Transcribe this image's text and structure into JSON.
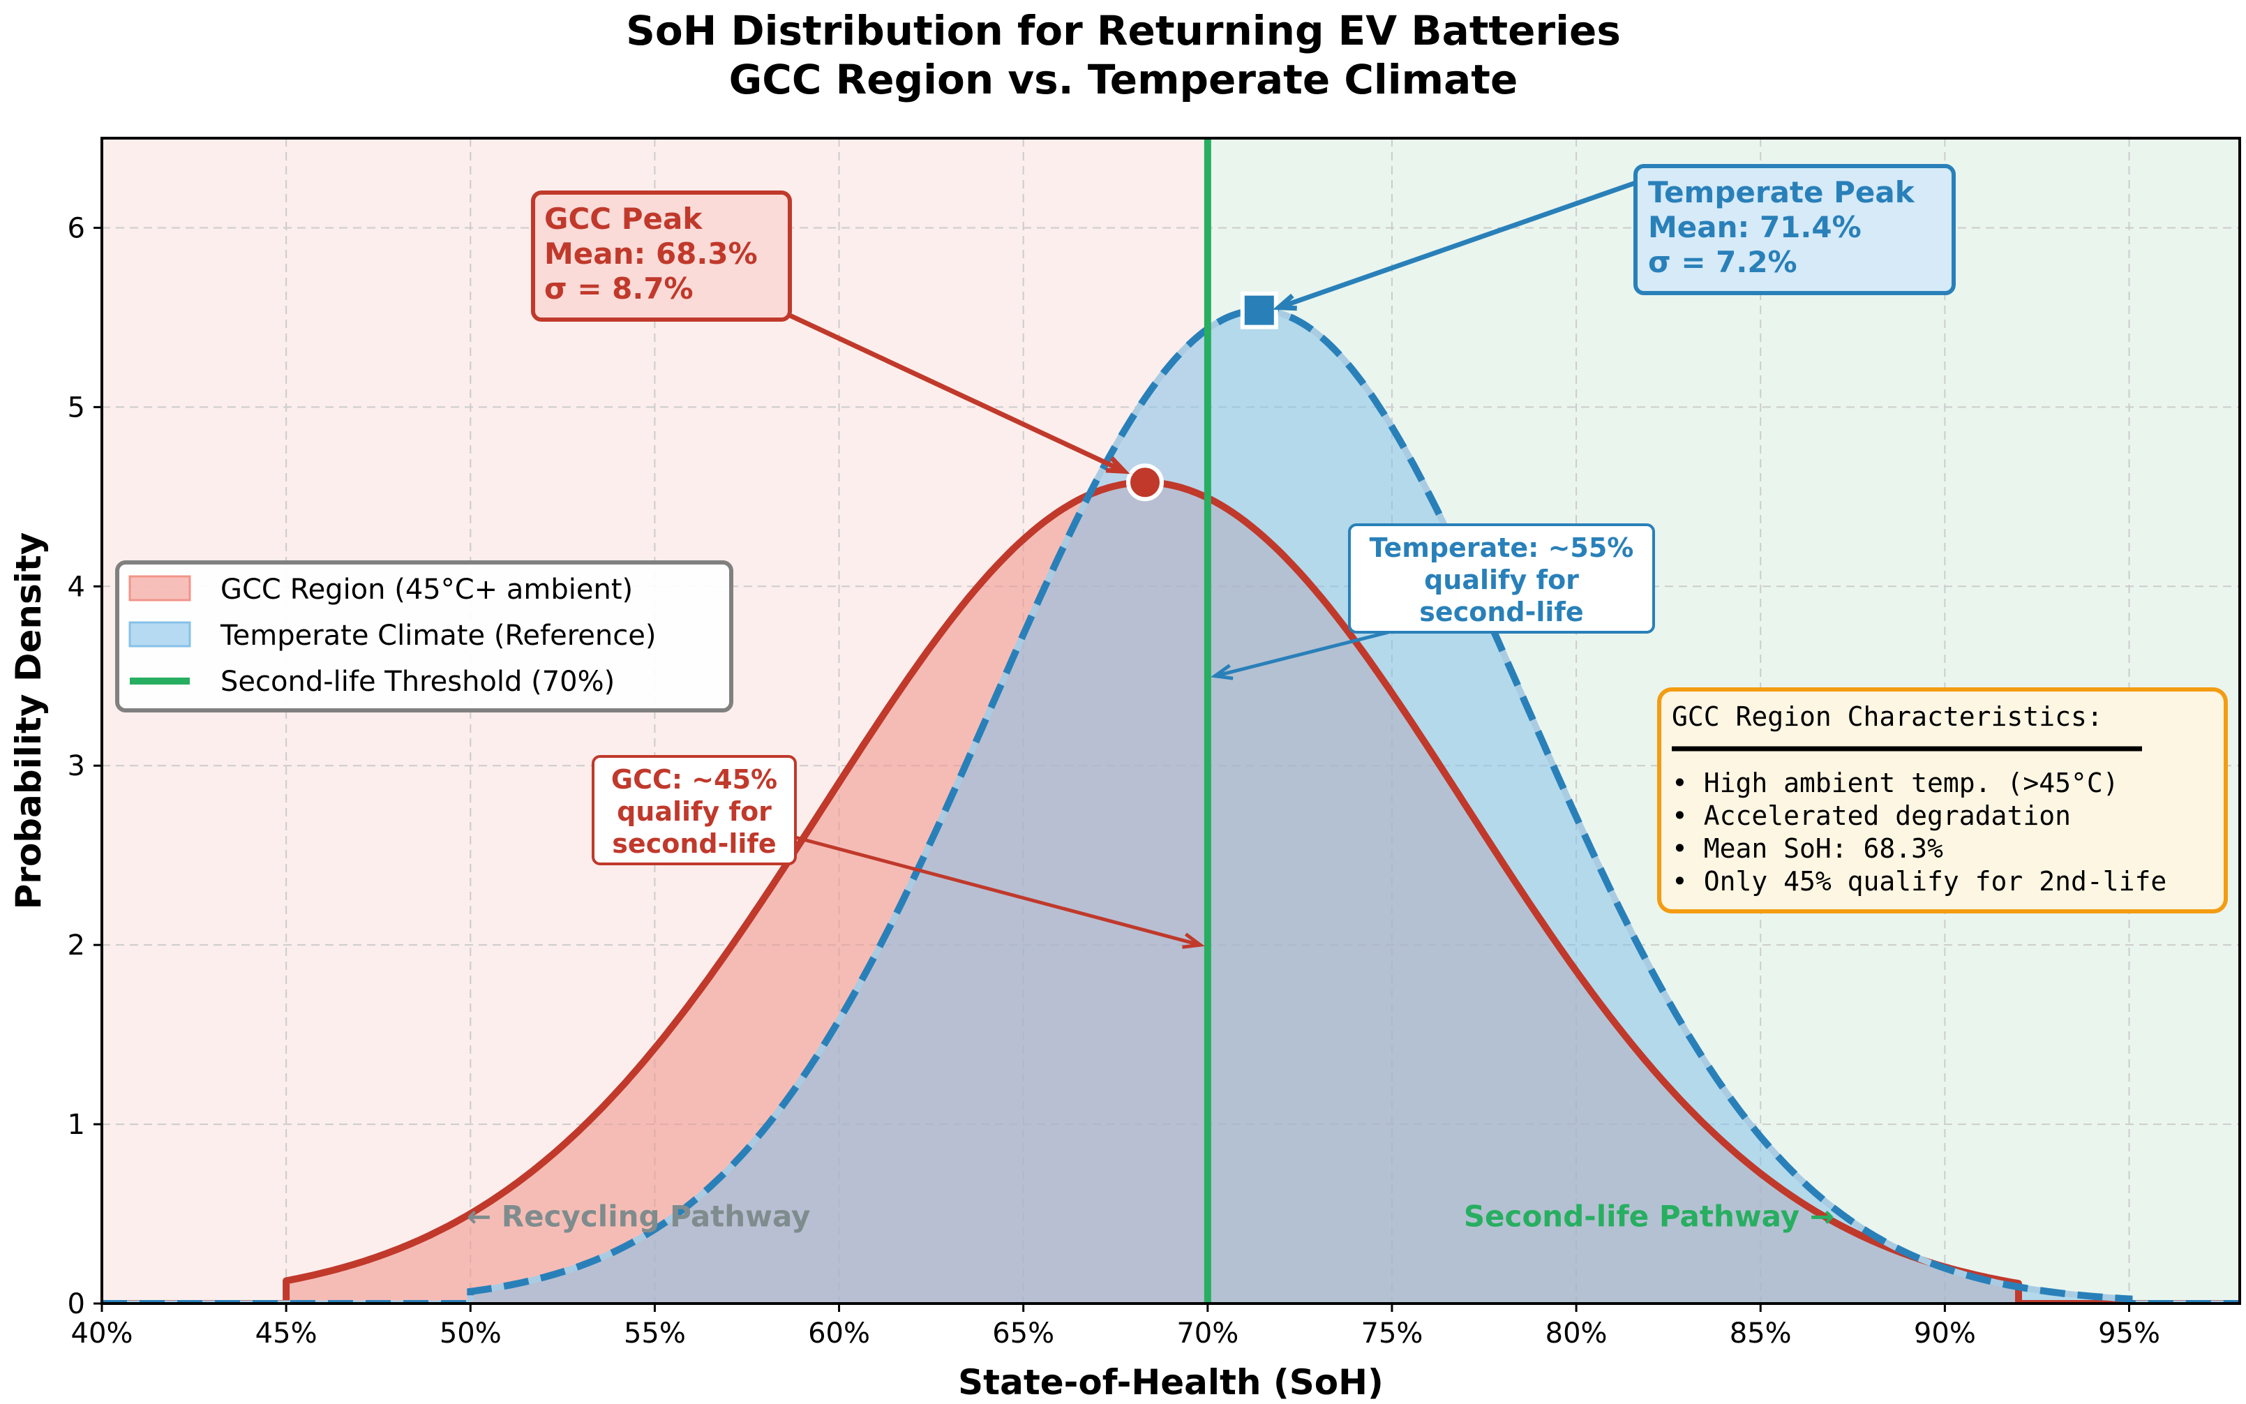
{
  "colors": {
    "gcc": "#c0392b",
    "gcc_fill": "#f1948a",
    "temperate": "#2980b9",
    "temperate_fill": "#85c1e9",
    "threshold": "#27ae60",
    "recycling_bg": "#fbeeec",
    "secondlife_bg": "#eaf5ee",
    "info_border": "#f39c12",
    "info_bg": "#fdf6e3",
    "pathway_gray": "#7f8c8d"
  },
  "chart_data": {
    "type": "area",
    "title_lines": [
      "SoH Distribution for Returning EV Batteries",
      "GCC Region vs. Temperate Climate"
    ],
    "xlabel": "State-of-Health (SoH)",
    "ylabel": "Probability Density",
    "xlim": [
      40,
      98
    ],
    "ylim": [
      0,
      6.5
    ],
    "x_ticks": [
      40,
      45,
      50,
      55,
      60,
      65,
      70,
      75,
      80,
      85,
      90,
      95
    ],
    "x_tick_labels": [
      "40%",
      "45%",
      "50%",
      "55%",
      "60%",
      "65%",
      "70%",
      "75%",
      "80%",
      "85%",
      "90%",
      "95%"
    ],
    "y_ticks": [
      0,
      1,
      2,
      3,
      4,
      5,
      6
    ],
    "y_tick_labels": [
      "0",
      "1",
      "2",
      "3",
      "4",
      "5",
      "6"
    ],
    "grid": true,
    "legend_position": "center-left",
    "series": [
      {
        "name": "GCC Region (45°C+ ambient)",
        "kind": "truncated-normal",
        "mean": 68.3,
        "sigma": 8.7,
        "support": [
          45,
          92
        ],
        "peak_density": 4.58,
        "line_style": "solid"
      },
      {
        "name": "Temperate Climate (Reference)",
        "kind": "truncated-normal",
        "mean": 71.4,
        "sigma": 7.2,
        "support": [
          50,
          95
        ],
        "peak_density": 5.54,
        "line_style": "dashed"
      }
    ],
    "threshold": {
      "name": "Second-life Threshold (70%)",
      "x": 70
    },
    "annotations": {
      "gcc_peak": {
        "lines": [
          "GCC Peak",
          "Mean: 68.3%",
          "σ = 8.7%"
        ],
        "point": [
          68.3,
          4.58
        ]
      },
      "temperate_peak": {
        "lines": [
          "Temperate Peak",
          "Mean: 71.4%",
          "σ = 7.2%"
        ],
        "point": [
          71.4,
          5.54
        ]
      },
      "temperate_qualify": {
        "lines": [
          "Temperate: ~55%",
          "qualify for",
          "second-life"
        ],
        "arrow_to": [
          70.2,
          3.5
        ]
      },
      "gcc_qualify": {
        "lines": [
          "GCC: ~45%",
          "qualify for",
          "second-life"
        ],
        "arrow_to": [
          69.8,
          2.0
        ]
      },
      "recycling_pathway": "← Recycling Pathway",
      "secondlife_pathway": "Second-life Pathway →"
    },
    "info_box": {
      "title": "GCC Region Characteristics:",
      "items": [
        "• High ambient temp. (>45°C)",
        "• Accelerated degradation",
        "• Mean SoH: 68.3%",
        "• Only 45% qualify for 2nd-life"
      ]
    }
  }
}
